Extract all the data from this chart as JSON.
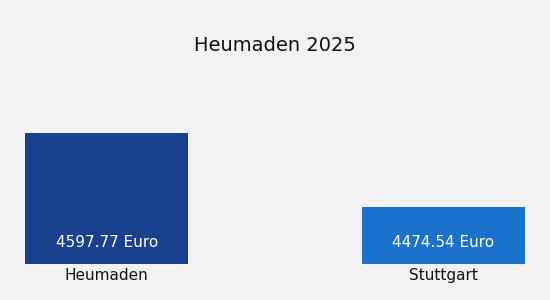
{
  "title": "Heumaden 2025",
  "categories": [
    "Heumaden",
    "Stuttgart"
  ],
  "values": [
    4597.77,
    4474.54
  ],
  "labels": [
    "4597.77 Euro",
    "4474.54 Euro"
  ],
  "bar_colors": [
    "#1a4090",
    "#1a72cc"
  ],
  "background_color": "#f2f2f2",
  "title_fontsize": 14,
  "label_fontsize": 11,
  "xlabel_fontsize": 11,
  "title_color": "#111111",
  "label_color": "#ffffff",
  "xlabel_color": "#111111",
  "bar_gap": 0.02,
  "ylim": [
    4380,
    4680
  ]
}
